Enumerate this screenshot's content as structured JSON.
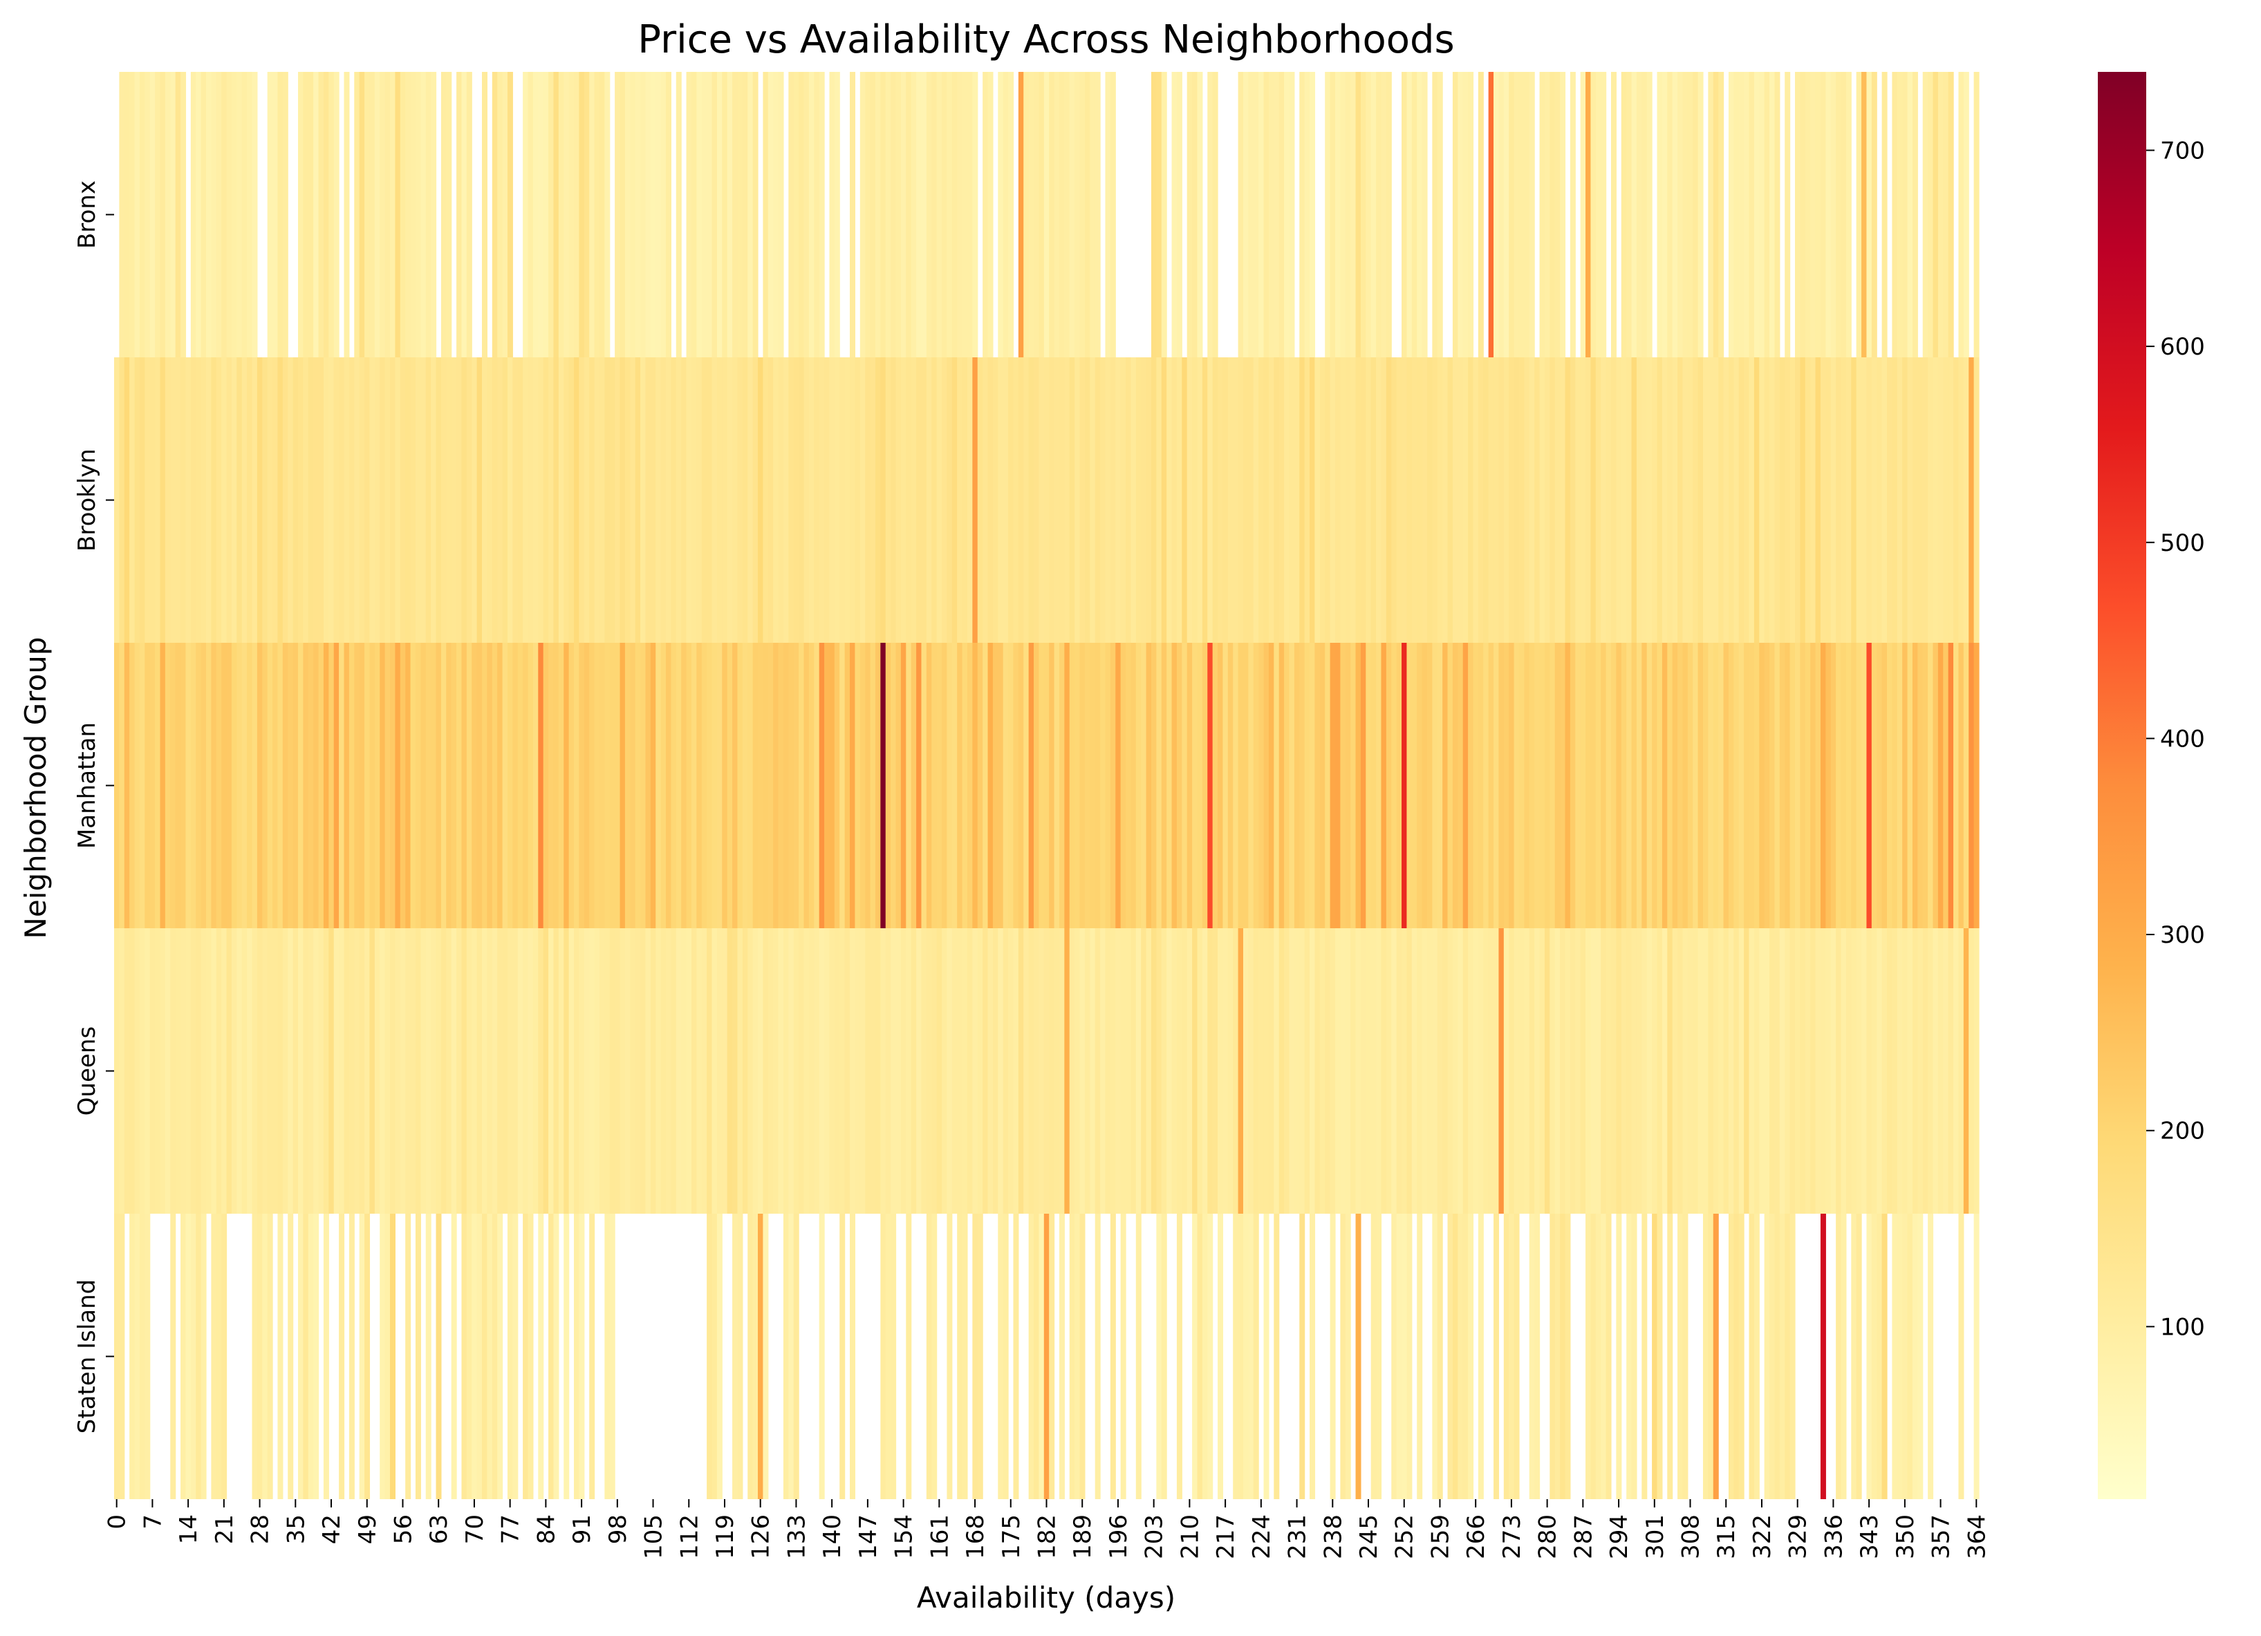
{
  "chart_data": {
    "type": "heatmap",
    "title": "Price vs Availability Across Neighborhoods",
    "xlabel": "Availability (days)",
    "ylabel": "Neighborhood Group",
    "x_range": [
      0,
      364
    ],
    "x_tick_labels": [
      "0",
      "7",
      "14",
      "21",
      "28",
      "35",
      "42",
      "49",
      "56",
      "63",
      "70",
      "77",
      "84",
      "91",
      "98",
      "105",
      "112",
      "119",
      "126",
      "133",
      "140",
      "147",
      "154",
      "161",
      "168",
      "175",
      "182",
      "189",
      "196",
      "203",
      "210",
      "217",
      "224",
      "231",
      "238",
      "245",
      "252",
      "259",
      "266",
      "273",
      "280",
      "287",
      "294",
      "301",
      "308",
      "315",
      "322",
      "329",
      "336",
      "343",
      "350",
      "357",
      "364"
    ],
    "rows": [
      "Bronx",
      "Brooklyn",
      "Manhattan",
      "Queens",
      "Staten Island"
    ],
    "colormap": "YlOrRd",
    "colorbar": {
      "min": 12,
      "max": 740,
      "ticks": [
        100,
        200,
        300,
        400,
        500,
        600,
        700
      ]
    },
    "row_baselines": {
      "Bronx": 90,
      "Brooklyn": 135,
      "Manhattan": 205,
      "Queens": 105,
      "Staten Island": 95
    },
    "row_variation": {
      "Bronx": 25,
      "Brooklyn": 18,
      "Manhattan": 35,
      "Queens": 18,
      "Staten Island": 30
    },
    "missing_ranges": {
      "Bronx": [
        [
          196,
          202
        ],
        [
          216,
          219
        ]
      ],
      "Staten Island": [
        [
          98,
          113
        ],
        [
          22,
          24
        ],
        [
          145,
          149
        ],
        [
          329,
          333
        ]
      ]
    },
    "missing_rate": {
      "Bronx": 0.16,
      "Brooklyn": 0,
      "Manhattan": 0,
      "Queens": 0,
      "Staten Island": 0.42
    },
    "notable_cells": [
      {
        "row": "Bronx",
        "day": 177,
        "price": 330
      },
      {
        "row": "Bronx",
        "day": 269,
        "price": 420
      },
      {
        "row": "Bronx",
        "day": 288,
        "price": 300
      },
      {
        "row": "Bronx",
        "day": 342,
        "price": 260
      },
      {
        "row": "Brooklyn",
        "day": 168,
        "price": 330
      },
      {
        "row": "Brooklyn",
        "day": 363,
        "price": 300
      },
      {
        "row": "Manhattan",
        "day": 150,
        "price": 740
      },
      {
        "row": "Manhattan",
        "day": 252,
        "price": 530
      },
      {
        "row": "Manhattan",
        "day": 214,
        "price": 470
      },
      {
        "row": "Manhattan",
        "day": 343,
        "price": 470
      },
      {
        "row": "Manhattan",
        "day": 83,
        "price": 380
      },
      {
        "row": "Manhattan",
        "day": 138,
        "price": 360
      },
      {
        "row": "Manhattan",
        "day": 157,
        "price": 350
      },
      {
        "row": "Manhattan",
        "day": 359,
        "price": 380
      },
      {
        "row": "Manhattan",
        "day": 363,
        "price": 360
      },
      {
        "row": "Manhattan",
        "day": 179,
        "price": 340
      },
      {
        "row": "Manhattan",
        "day": 244,
        "price": 330
      },
      {
        "row": "Manhattan",
        "day": 264,
        "price": 320
      },
      {
        "row": "Queens",
        "day": 271,
        "price": 360
      },
      {
        "row": "Queens",
        "day": 220,
        "price": 300
      },
      {
        "row": "Queens",
        "day": 186,
        "price": 290
      },
      {
        "row": "Queens",
        "day": 362,
        "price": 280
      },
      {
        "row": "Staten Island",
        "day": 334,
        "price": 600
      },
      {
        "row": "Staten Island",
        "day": 182,
        "price": 330
      },
      {
        "row": "Staten Island",
        "day": 313,
        "price": 330
      },
      {
        "row": "Staten Island",
        "day": 126,
        "price": 300
      },
      {
        "row": "Staten Island",
        "day": 243,
        "price": 290
      }
    ]
  }
}
